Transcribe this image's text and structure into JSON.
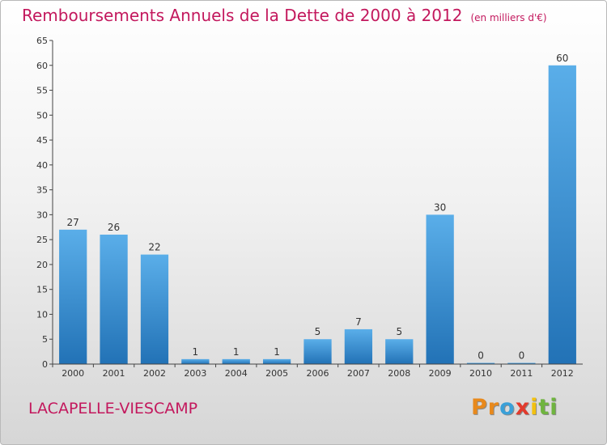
{
  "chart_data": {
    "type": "bar",
    "title": "Remboursements Annuels de la Dette de 2000 à 2012",
    "subtitle": "(en milliers d'€)",
    "categories": [
      "2000",
      "2001",
      "2002",
      "2003",
      "2004",
      "2005",
      "2006",
      "2007",
      "2008",
      "2009",
      "2010",
      "2011",
      "2012"
    ],
    "values": [
      27,
      26,
      22,
      1,
      1,
      1,
      5,
      7,
      5,
      30,
      0,
      0,
      60
    ],
    "ylim": [
      0,
      65
    ],
    "yticks": [
      0,
      5,
      10,
      15,
      20,
      25,
      30,
      35,
      40,
      45,
      50,
      55,
      60,
      65
    ],
    "grid": false,
    "legend": "none",
    "bar_color": "#3a8fd4"
  },
  "footer": {
    "commune": "LACAPELLE-VIESCAMP",
    "brand": [
      "P",
      "r",
      "o",
      "x",
      "i",
      "t",
      "i"
    ],
    "brand_colors": [
      "#e8891c",
      "#e8891c",
      "#3aa0d8",
      "#e23a2c",
      "#f2c10f",
      "#6fb43f",
      "#6fb43f"
    ]
  }
}
